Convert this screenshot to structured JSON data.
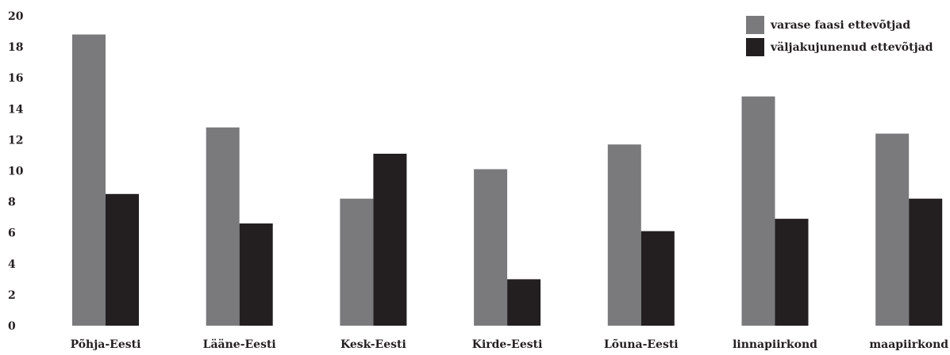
{
  "chart_data": {
    "type": "bar",
    "categories": [
      "Põhja-Eesti",
      "Lääne-Eesti",
      "Kesk-Eesti",
      "Kirde-Eesti",
      "Lõuna-Eesti",
      "linnapiirkond",
      "maapiirkond"
    ],
    "series": [
      {
        "name": "varase faasi ettevõtjad",
        "color": "#7a7a7d",
        "values": [
          18.8,
          12.8,
          8.2,
          10.1,
          11.7,
          14.8,
          12.4
        ]
      },
      {
        "name": "väljakujunenud ettevõtjad",
        "color": "#231f20",
        "values": [
          8.5,
          6.6,
          11.1,
          3.0,
          6.1,
          6.9,
          8.2
        ]
      }
    ],
    "yticks": [
      "0",
      "2",
      "4",
      "6",
      "8",
      "10",
      "12",
      "14",
      "16",
      "18",
      "20"
    ],
    "ylim": [
      0,
      20
    ],
    "grid": false,
    "legend_position": "top-right",
    "title": "",
    "xlabel": "",
    "ylabel": ""
  }
}
